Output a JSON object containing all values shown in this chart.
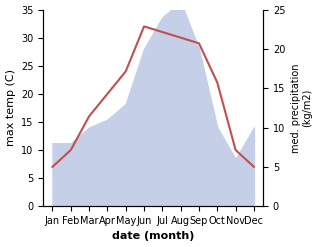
{
  "months": [
    "Jan",
    "Feb",
    "Mar",
    "Apr",
    "May",
    "Jun",
    "Jul",
    "Aug",
    "Sep",
    "Oct",
    "Nov",
    "Dec"
  ],
  "temperature": [
    7,
    10,
    16,
    20,
    24,
    32,
    31,
    30,
    29,
    22,
    10,
    7
  ],
  "precipitation": [
    8,
    8,
    10,
    11,
    13,
    20,
    24,
    26,
    20,
    10,
    6,
    10
  ],
  "temp_color": "#c0504d",
  "precip_fill_color": "#c5cfe8",
  "ylabel_left": "max temp (C)",
  "ylabel_right": "med. precipitation\n(kg/m2)",
  "xlabel": "date (month)",
  "ylim_left": [
    0,
    35
  ],
  "ylim_right": [
    0,
    25
  ],
  "yticks_left": [
    0,
    5,
    10,
    15,
    20,
    25,
    30,
    35
  ],
  "yticks_right": [
    0,
    5,
    10,
    15,
    20,
    25
  ],
  "background_color": "#ffffff",
  "temp_linewidth": 1.5
}
